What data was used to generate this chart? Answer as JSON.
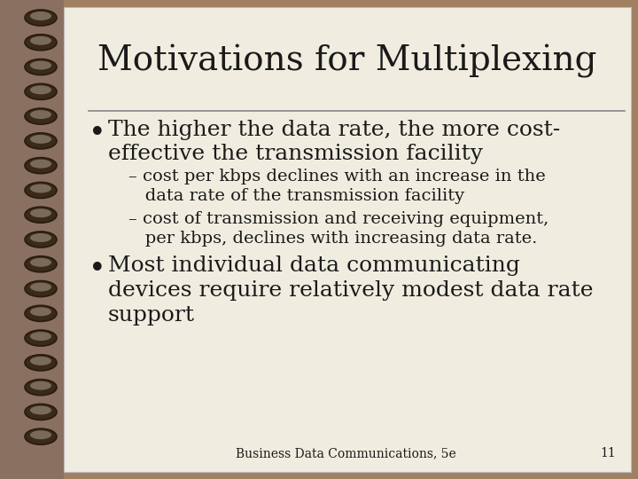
{
  "background_color": "#a08060",
  "slide_bg": "#f0ede0",
  "title": "Motivations for Multiplexing",
  "title_fontsize": 28,
  "title_color": "#1a1a1a",
  "separator_color": "#888888",
  "bullet1_line1": "The higher the data rate, the more cost-",
  "bullet1_line2": "effective the transmission facility",
  "sub1a_line1": "– cost per kbps declines with an increase in the",
  "sub1a_line2": "   data rate of the transmission facility",
  "sub1b_line1": "– cost of transmission and receiving equipment,",
  "sub1b_line2": "   per kbps, declines with increasing data rate.",
  "bullet2_line1": "Most individual data communicating",
  "bullet2_line2": "devices require relatively modest data rate",
  "bullet2_line3": "support",
  "footer": "Business Data Communications, 5e",
  "page_num": "11",
  "bullet_color": "#1a1a1a",
  "text_color": "#1a1a1a",
  "title_font": "serif",
  "body_font": "serif",
  "bullet_fontsize": 18,
  "sub_fontsize": 14,
  "footer_fontsize": 10,
  "spiral_bg": "#8a7060",
  "spiral_dark": "#2a1a0a",
  "spiral_mid": "#3a2a1a",
  "spiral_light": "#7a6a5a"
}
